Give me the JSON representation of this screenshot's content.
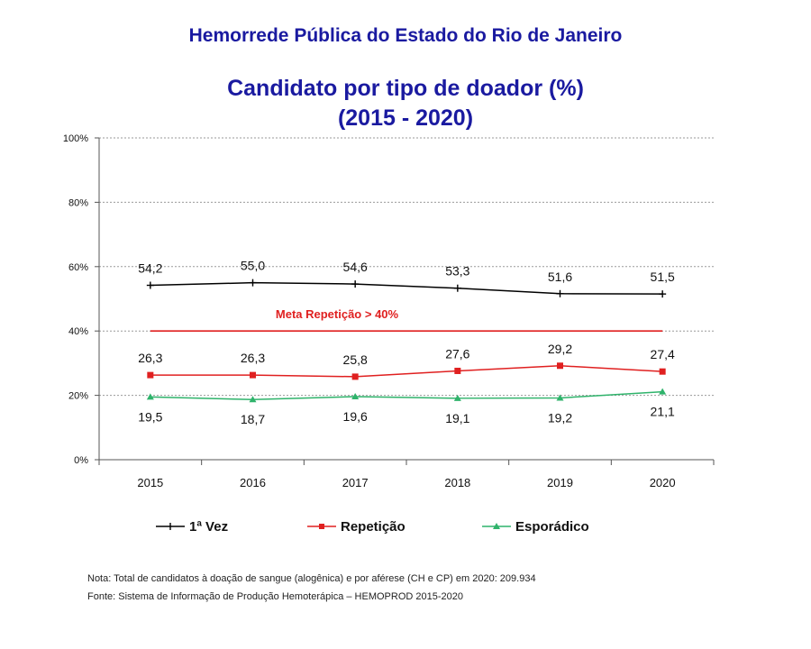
{
  "header": {
    "line1": "Hemorrede Pública do Estado do Rio de Janeiro",
    "title": "Candidato por tipo de doador (%)",
    "period": "(2015 - 2020)"
  },
  "chart_data": {
    "type": "line",
    "title": "Candidato por tipo de doador (%)",
    "subtitle": "(2015 - 2020)",
    "categories": [
      "2015",
      "2016",
      "2017",
      "2018",
      "2019",
      "2020"
    ],
    "ylim": [
      0,
      100
    ],
    "yticks": [
      "0%",
      "20%",
      "40%",
      "60%",
      "80%",
      "100%"
    ],
    "ytick_values": [
      0,
      20,
      40,
      60,
      80,
      100
    ],
    "grid": true,
    "legend_position": "bottom",
    "series": [
      {
        "name": "1ª Vez",
        "color": "#000000",
        "marker": "plus",
        "values": [
          54.2,
          55.0,
          54.6,
          53.3,
          51.6,
          51.5
        ],
        "labels": [
          "54,2",
          "55,0",
          "54,6",
          "53,3",
          "51,6",
          "51,5"
        ],
        "label_side": "above"
      },
      {
        "name": "Repetição",
        "color": "#e02020",
        "marker": "square",
        "values": [
          26.3,
          26.3,
          25.8,
          27.6,
          29.2,
          27.4
        ],
        "labels": [
          "26,3",
          "26,3",
          "25,8",
          "27,6",
          "29,2",
          "27,4"
        ],
        "label_side": "above"
      },
      {
        "name": "Esporádico",
        "color": "#2fb36b",
        "marker": "triangle",
        "values": [
          19.5,
          18.7,
          19.6,
          19.1,
          19.2,
          21.1
        ],
        "labels": [
          "19,5",
          "18,7",
          "19,6",
          "19,1",
          "19,2",
          "21,1"
        ],
        "label_side": "below"
      }
    ],
    "reference_line": {
      "value": 40,
      "label": "Meta Repetição > 40%",
      "color": "#e02020"
    }
  },
  "notes": {
    "note": "Nota: Total de candidatos à doação de sangue (alogênica) e por aférese (CH e CP) em 2020: 209.934",
    "source": "Fonte: Sistema de Informação de Produção Hemoterápica – HEMOPROD 2015-2020"
  }
}
